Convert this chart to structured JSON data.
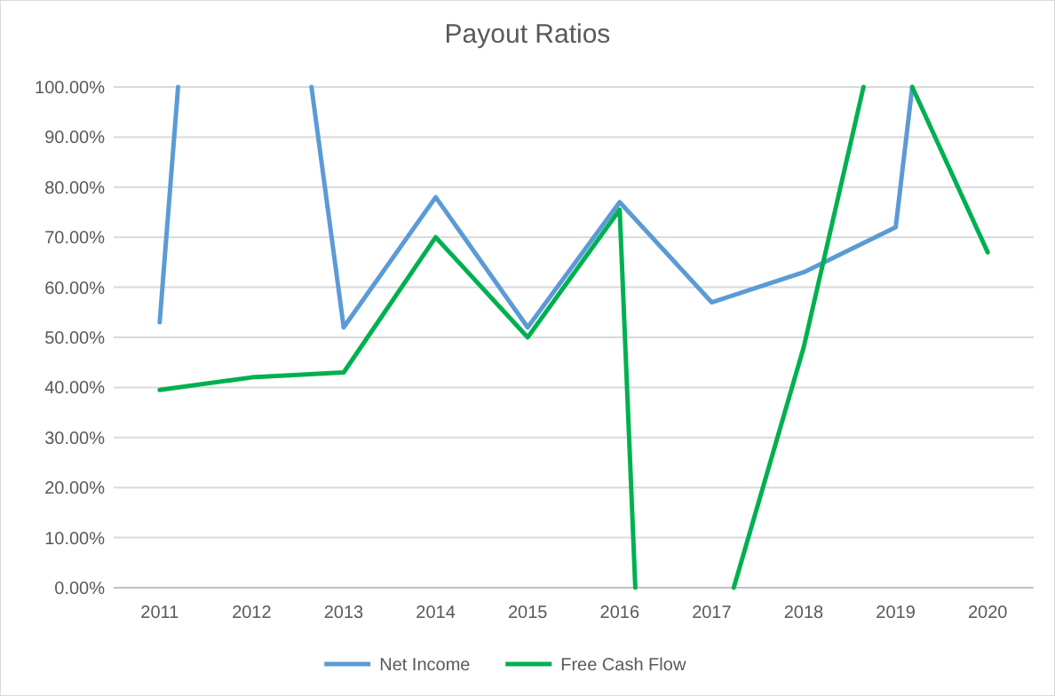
{
  "chart_data": {
    "type": "line",
    "title": "Payout Ratios",
    "xlim": [
      2010.5,
      2020.5
    ],
    "xticks": [
      2011,
      2012,
      2013,
      2014,
      2015,
      2016,
      2017,
      2018,
      2019,
      2020
    ],
    "ylim": [
      0,
      100
    ],
    "yticks": [
      {
        "value": 0,
        "label": "0.00%"
      },
      {
        "value": 10,
        "label": "10.00%"
      },
      {
        "value": 20,
        "label": "20.00%"
      },
      {
        "value": 30,
        "label": "30.00%"
      },
      {
        "value": 40,
        "label": "40.00%"
      },
      {
        "value": 50,
        "label": "50.00%"
      },
      {
        "value": 60,
        "label": "60.00%"
      },
      {
        "value": 70,
        "label": "70.00%"
      },
      {
        "value": 80,
        "label": "80.00%"
      },
      {
        "value": 90,
        "label": "90.00%"
      },
      {
        "value": 100,
        "label": "100.00%"
      }
    ],
    "grid": "y",
    "legend": "bottom",
    "marker": "none",
    "line_style": "solid",
    "series": [
      {
        "name": "Net Income",
        "color": "#5b9bd5",
        "x": [
          2011,
          2011.2,
          2012.5,
          2012.65,
          2013,
          2014,
          2015,
          2016,
          2017,
          2018,
          2019,
          2019.18
        ],
        "values": [
          53,
          100,
          null,
          100,
          52,
          78,
          52,
          77,
          57,
          63,
          72,
          100
        ]
      },
      {
        "name": "Free Cash Flow",
        "color": "#00b050",
        "x": [
          2011,
          2012,
          2013,
          2014,
          2015,
          2016,
          2016.17,
          2016.7,
          2017.24,
          2018,
          2018.65,
          2018.9,
          2019.18,
          2020
        ],
        "values": [
          39.5,
          42,
          43,
          70,
          50,
          75.5,
          0,
          null,
          0,
          48,
          100,
          null,
          100,
          67
        ]
      }
    ]
  }
}
